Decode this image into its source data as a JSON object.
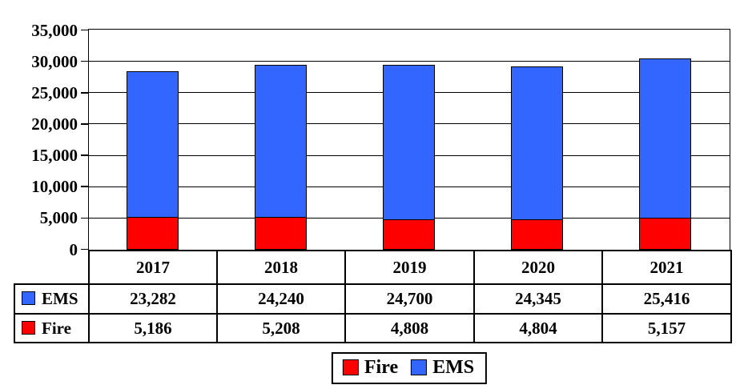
{
  "chart_data": {
    "type": "bar",
    "stacked": true,
    "orientation": "vertical",
    "categories": [
      "2017",
      "2018",
      "2019",
      "2020",
      "2021"
    ],
    "series": [
      {
        "name": "Fire",
        "color": "#FF0000",
        "values": [
          5186,
          5208,
          4808,
          4804,
          5157
        ]
      },
      {
        "name": "EMS",
        "color": "#3366FF",
        "values": [
          23282,
          24240,
          24700,
          24345,
          25416
        ]
      }
    ],
    "title": "",
    "xlabel": "",
    "ylabel": "",
    "ylim": [
      0,
      35000
    ],
    "ytick_interval": 5000,
    "ytick_labels": [
      "0",
      "5,000",
      "10,000",
      "15,000",
      "20,000",
      "25,000",
      "30,000",
      "35,000"
    ],
    "grid": "horizontal",
    "legend_position": "bottom",
    "legend_order": [
      "Fire",
      "EMS"
    ]
  },
  "table": {
    "columns": [
      "2017",
      "2018",
      "2019",
      "2020",
      "2021"
    ],
    "rows": [
      {
        "label": "EMS",
        "swatch": "ems",
        "values": [
          "23,282",
          "24,240",
          "24,700",
          "24,345",
          "25,416"
        ]
      },
      {
        "label": "Fire",
        "swatch": "fire",
        "values": [
          "5,186",
          "5,208",
          "4,808",
          "4,804",
          "5,157"
        ]
      }
    ]
  },
  "legend": {
    "items": [
      {
        "label": "Fire",
        "swatch": "fire"
      },
      {
        "label": "EMS",
        "swatch": "ems"
      }
    ]
  },
  "colors": {
    "fire": "#FF0000",
    "ems": "#3366FF",
    "axis": "#000000",
    "background": "#FFFFFF"
  }
}
